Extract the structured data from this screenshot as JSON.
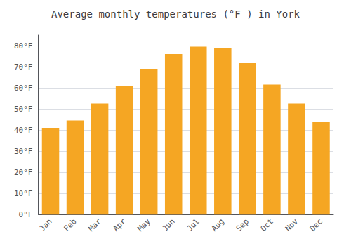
{
  "chart_data": {
    "type": "bar",
    "title": "Average monthly temperatures (°F ) in York",
    "categories": [
      "Jan",
      "Feb",
      "Mar",
      "Apr",
      "May",
      "Jun",
      "Jul",
      "Aug",
      "Sep",
      "Oct",
      "Nov",
      "Dec"
    ],
    "values": [
      41,
      44.5,
      52.5,
      61,
      69,
      76,
      79.5,
      79,
      72,
      61.5,
      52.5,
      44
    ],
    "color": "#F5A623",
    "ylim": [
      0,
      85
    ],
    "yticks": [
      {
        "value": 0,
        "label": "0°F"
      },
      {
        "value": 10,
        "label": "10°F"
      },
      {
        "value": 20,
        "label": "20°F"
      },
      {
        "value": 30,
        "label": "30°F"
      },
      {
        "value": 40,
        "label": "40°F"
      },
      {
        "value": 50,
        "label": "50°F"
      },
      {
        "value": 60,
        "label": "60°F"
      },
      {
        "value": 70,
        "label": "70°F"
      },
      {
        "value": 80,
        "label": "80°F"
      }
    ],
    "grid": true
  }
}
